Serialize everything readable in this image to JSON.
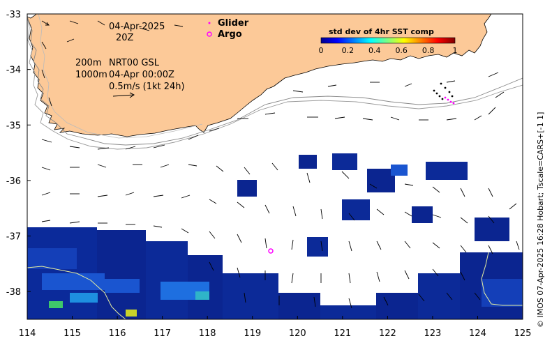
{
  "map": {
    "date_label": "04-Apr-2025",
    "time_label": "20Z",
    "depth_label": "200m",
    "depth2_label": "1000m",
    "product_label": "NRT00 GSL",
    "valid_label": "04-Apr 00:00Z",
    "scale_label": "0.5m/s (1kt 24h)",
    "legend_glider": "Glider",
    "legend_argo": "Argo",
    "colorbar_title": "std dev of 4hr SST comp",
    "colorbar_ticks": [
      "0",
      "0.2",
      "0.4",
      "0.6",
      "0.8",
      "1"
    ],
    "lon_ticks": [
      "114",
      "115",
      "116",
      "117",
      "118",
      "119",
      "120",
      "121",
      "122",
      "123",
      "124",
      "125"
    ],
    "lat_ticks": [
      "-33",
      "-34",
      "-35",
      "-36",
      "-37",
      "-38"
    ],
    "credit": "© IMOS 07-Apr-2025 16:28 Hobart; Tscale=CARS+[-1 1]",
    "colors": {
      "land": "#fcc998",
      "glider": "#ff00ff",
      "argo": "#ff00ff",
      "sst_low": "#0b1f8f",
      "sst_high": "#8b0000"
    },
    "extent": {
      "lon": [
        114,
        125
      ],
      "lat": [
        -38.5,
        -33
      ]
    }
  }
}
